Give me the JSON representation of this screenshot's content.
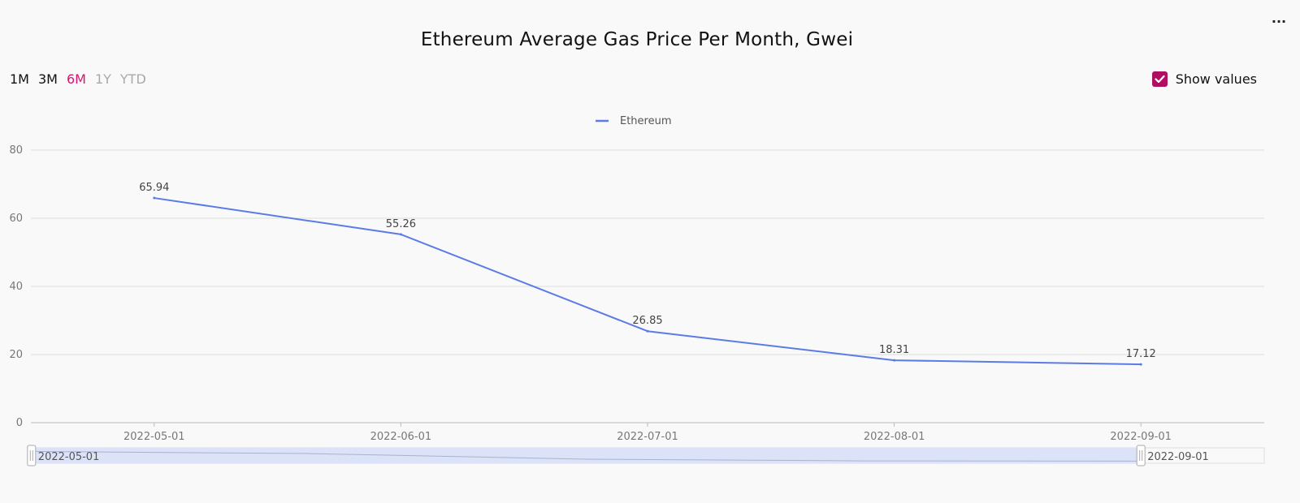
{
  "header": {
    "title": "Ethereum Average Gas Price Per Month, Gwei",
    "menu_icon": "more-horizontal-icon"
  },
  "range_selector": {
    "active": "6M",
    "options": [
      {
        "label": "1M",
        "state": "enabled",
        "color": "#111111"
      },
      {
        "label": "3M",
        "state": "enabled",
        "color": "#111111"
      },
      {
        "label": "6M",
        "state": "active",
        "color": "#d6166e"
      },
      {
        "label": "1Y",
        "state": "disabled",
        "color": "#a9a9a9"
      },
      {
        "label": "YTD",
        "state": "disabled",
        "color": "#a9a9a9"
      }
    ]
  },
  "show_values": {
    "label": "Show values",
    "checked": true,
    "color": "#b00e62"
  },
  "colors": {
    "series": "#5b7be6",
    "zoom_fill": "#dce2f7",
    "grid": "#dddddd"
  },
  "chart_data": {
    "type": "line",
    "title": "Ethereum Average Gas Price Per Month, Gwei",
    "x": [
      "2022-05-01",
      "2022-06-01",
      "2022-07-01",
      "2022-08-01",
      "2022-09-01"
    ],
    "series": [
      {
        "name": "Ethereum",
        "values": [
          65.94,
          55.26,
          26.85,
          18.31,
          17.12
        ],
        "color": "#5b7be6"
      }
    ],
    "data_labels": [
      "65.94",
      "55.26",
      "26.85",
      "18.31",
      "17.12"
    ],
    "ylim": [
      0,
      80
    ],
    "y_ticks": [
      "0",
      "20",
      "40",
      "60",
      "80"
    ],
    "grid": true,
    "legend_position": "top-center",
    "data_zoom": {
      "start_label": "2022-05-01",
      "end_label": "2022-09-01"
    }
  }
}
